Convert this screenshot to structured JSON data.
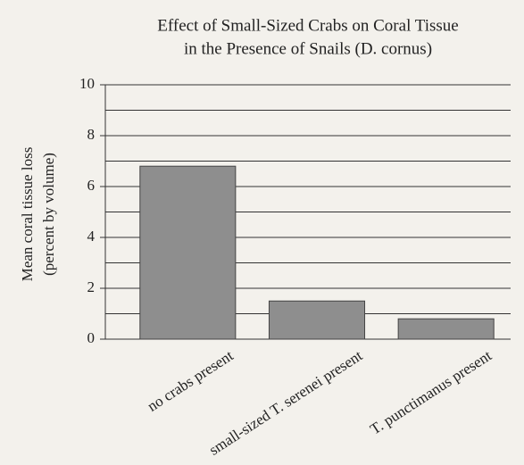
{
  "chart_data": {
    "type": "bar",
    "title": [
      "Effect of Small-Sized Crabs on Coral Tissue",
      "in the Presence of Snails (D. cornus)"
    ],
    "ylabel": [
      "Mean coral tissue loss",
      "(percent by volume)"
    ],
    "categories": [
      "no crabs present",
      "small-sized T. serenei present",
      "T. punctimanus present"
    ],
    "values": [
      6.8,
      1.5,
      0.8
    ],
    "color": "#8e8e8e",
    "ylim": [
      0,
      10
    ],
    "yticks": [
      0,
      2,
      4,
      6,
      8,
      10
    ],
    "yminorticks": [
      1,
      3,
      5,
      7,
      9
    ],
    "grid": true
  }
}
